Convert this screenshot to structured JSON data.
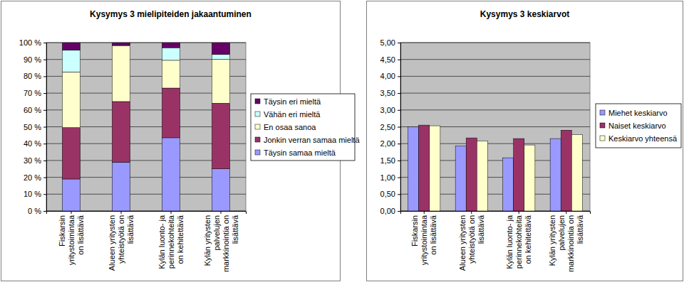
{
  "chart_data": [
    {
      "type": "bar",
      "title": "Kysymys 3 mielipiteiden jakaantuminen",
      "stacked": true,
      "grid": true,
      "legend": "right",
      "categories": [
        "Fiskarsin yritystoimintaa on lisättävä",
        "Alueen yritysten yhteistyötä on lisättävä",
        "Kylän luonto- ja perinnekohteita on kehitettävä",
        "Kylän yritysten palvelujen markkinointia on lisättävä"
      ],
      "series": [
        {
          "name": "Täysin samaa mieltä",
          "color": "#9999ff",
          "values": [
            19,
            29,
            43.5,
            25
          ]
        },
        {
          "name": "Jonkin verran samaa mieltä",
          "color": "#993366",
          "values": [
            30.5,
            36,
            29.5,
            39
          ]
        },
        {
          "name": "En osaa sanoa",
          "color": "#ffffcc",
          "values": [
            33,
            33,
            16.5,
            26
          ]
        },
        {
          "name": "Vähän eri mieltä",
          "color": "#ccffff",
          "values": [
            13,
            0.5,
            7.5,
            3
          ]
        },
        {
          "name": "Täysin eri mieltä",
          "color": "#660066",
          "values": [
            4.5,
            1.5,
            3,
            7
          ]
        }
      ],
      "ylim": [
        0,
        100
      ],
      "yticks": [
        {
          "value": 0,
          "label": "0 %"
        },
        {
          "value": 10,
          "label": "10 %"
        },
        {
          "value": 20,
          "label": "20 %"
        },
        {
          "value": 30,
          "label": "30 %"
        },
        {
          "value": 40,
          "label": "40 %"
        },
        {
          "value": 50,
          "label": "50 %"
        },
        {
          "value": 60,
          "label": "60 %"
        },
        {
          "value": 70,
          "label": "70 %"
        },
        {
          "value": 80,
          "label": "80 %"
        },
        {
          "value": 90,
          "label": "90 %"
        },
        {
          "value": 100,
          "label": "100 %"
        }
      ]
    },
    {
      "type": "bar",
      "title": "Kysymys 3 keskiarvot",
      "grid": true,
      "legend": "right",
      "categories": [
        "Fiskarsin yritystoimintaa on lisättävä",
        "Alueen yritysten yhteistyötä on lisättävä",
        "Kylän luonto- ja perinnekohteita on kehitettävä",
        "Kylän yritysten palvelujen markkinointia on lisättävä"
      ],
      "series": [
        {
          "name": "Miehet keskiarvo",
          "color": "#9999ff",
          "values": [
            2.5,
            1.93,
            1.58,
            2.15
          ]
        },
        {
          "name": "Naiset keskiarvo",
          "color": "#993366",
          "values": [
            2.55,
            2.17,
            2.15,
            2.4
          ]
        },
        {
          "name": "Keskiarvo yhteensä",
          "color": "#ffffcc",
          "values": [
            2.53,
            2.08,
            1.96,
            2.27
          ]
        }
      ],
      "ylim": [
        0,
        5
      ],
      "yticks": [
        {
          "value": 0,
          "label": "0,00"
        },
        {
          "value": 0.5,
          "label": "0,50"
        },
        {
          "value": 1,
          "label": "1,00"
        },
        {
          "value": 1.5,
          "label": "1,50"
        },
        {
          "value": 2,
          "label": "2,00"
        },
        {
          "value": 2.5,
          "label": "2,50"
        },
        {
          "value": 3,
          "label": "3,00"
        },
        {
          "value": 3.5,
          "label": "3,50"
        },
        {
          "value": 4,
          "label": "4,00"
        },
        {
          "value": 4.5,
          "label": "4,50"
        },
        {
          "value": 5,
          "label": "5,00"
        }
      ]
    }
  ]
}
